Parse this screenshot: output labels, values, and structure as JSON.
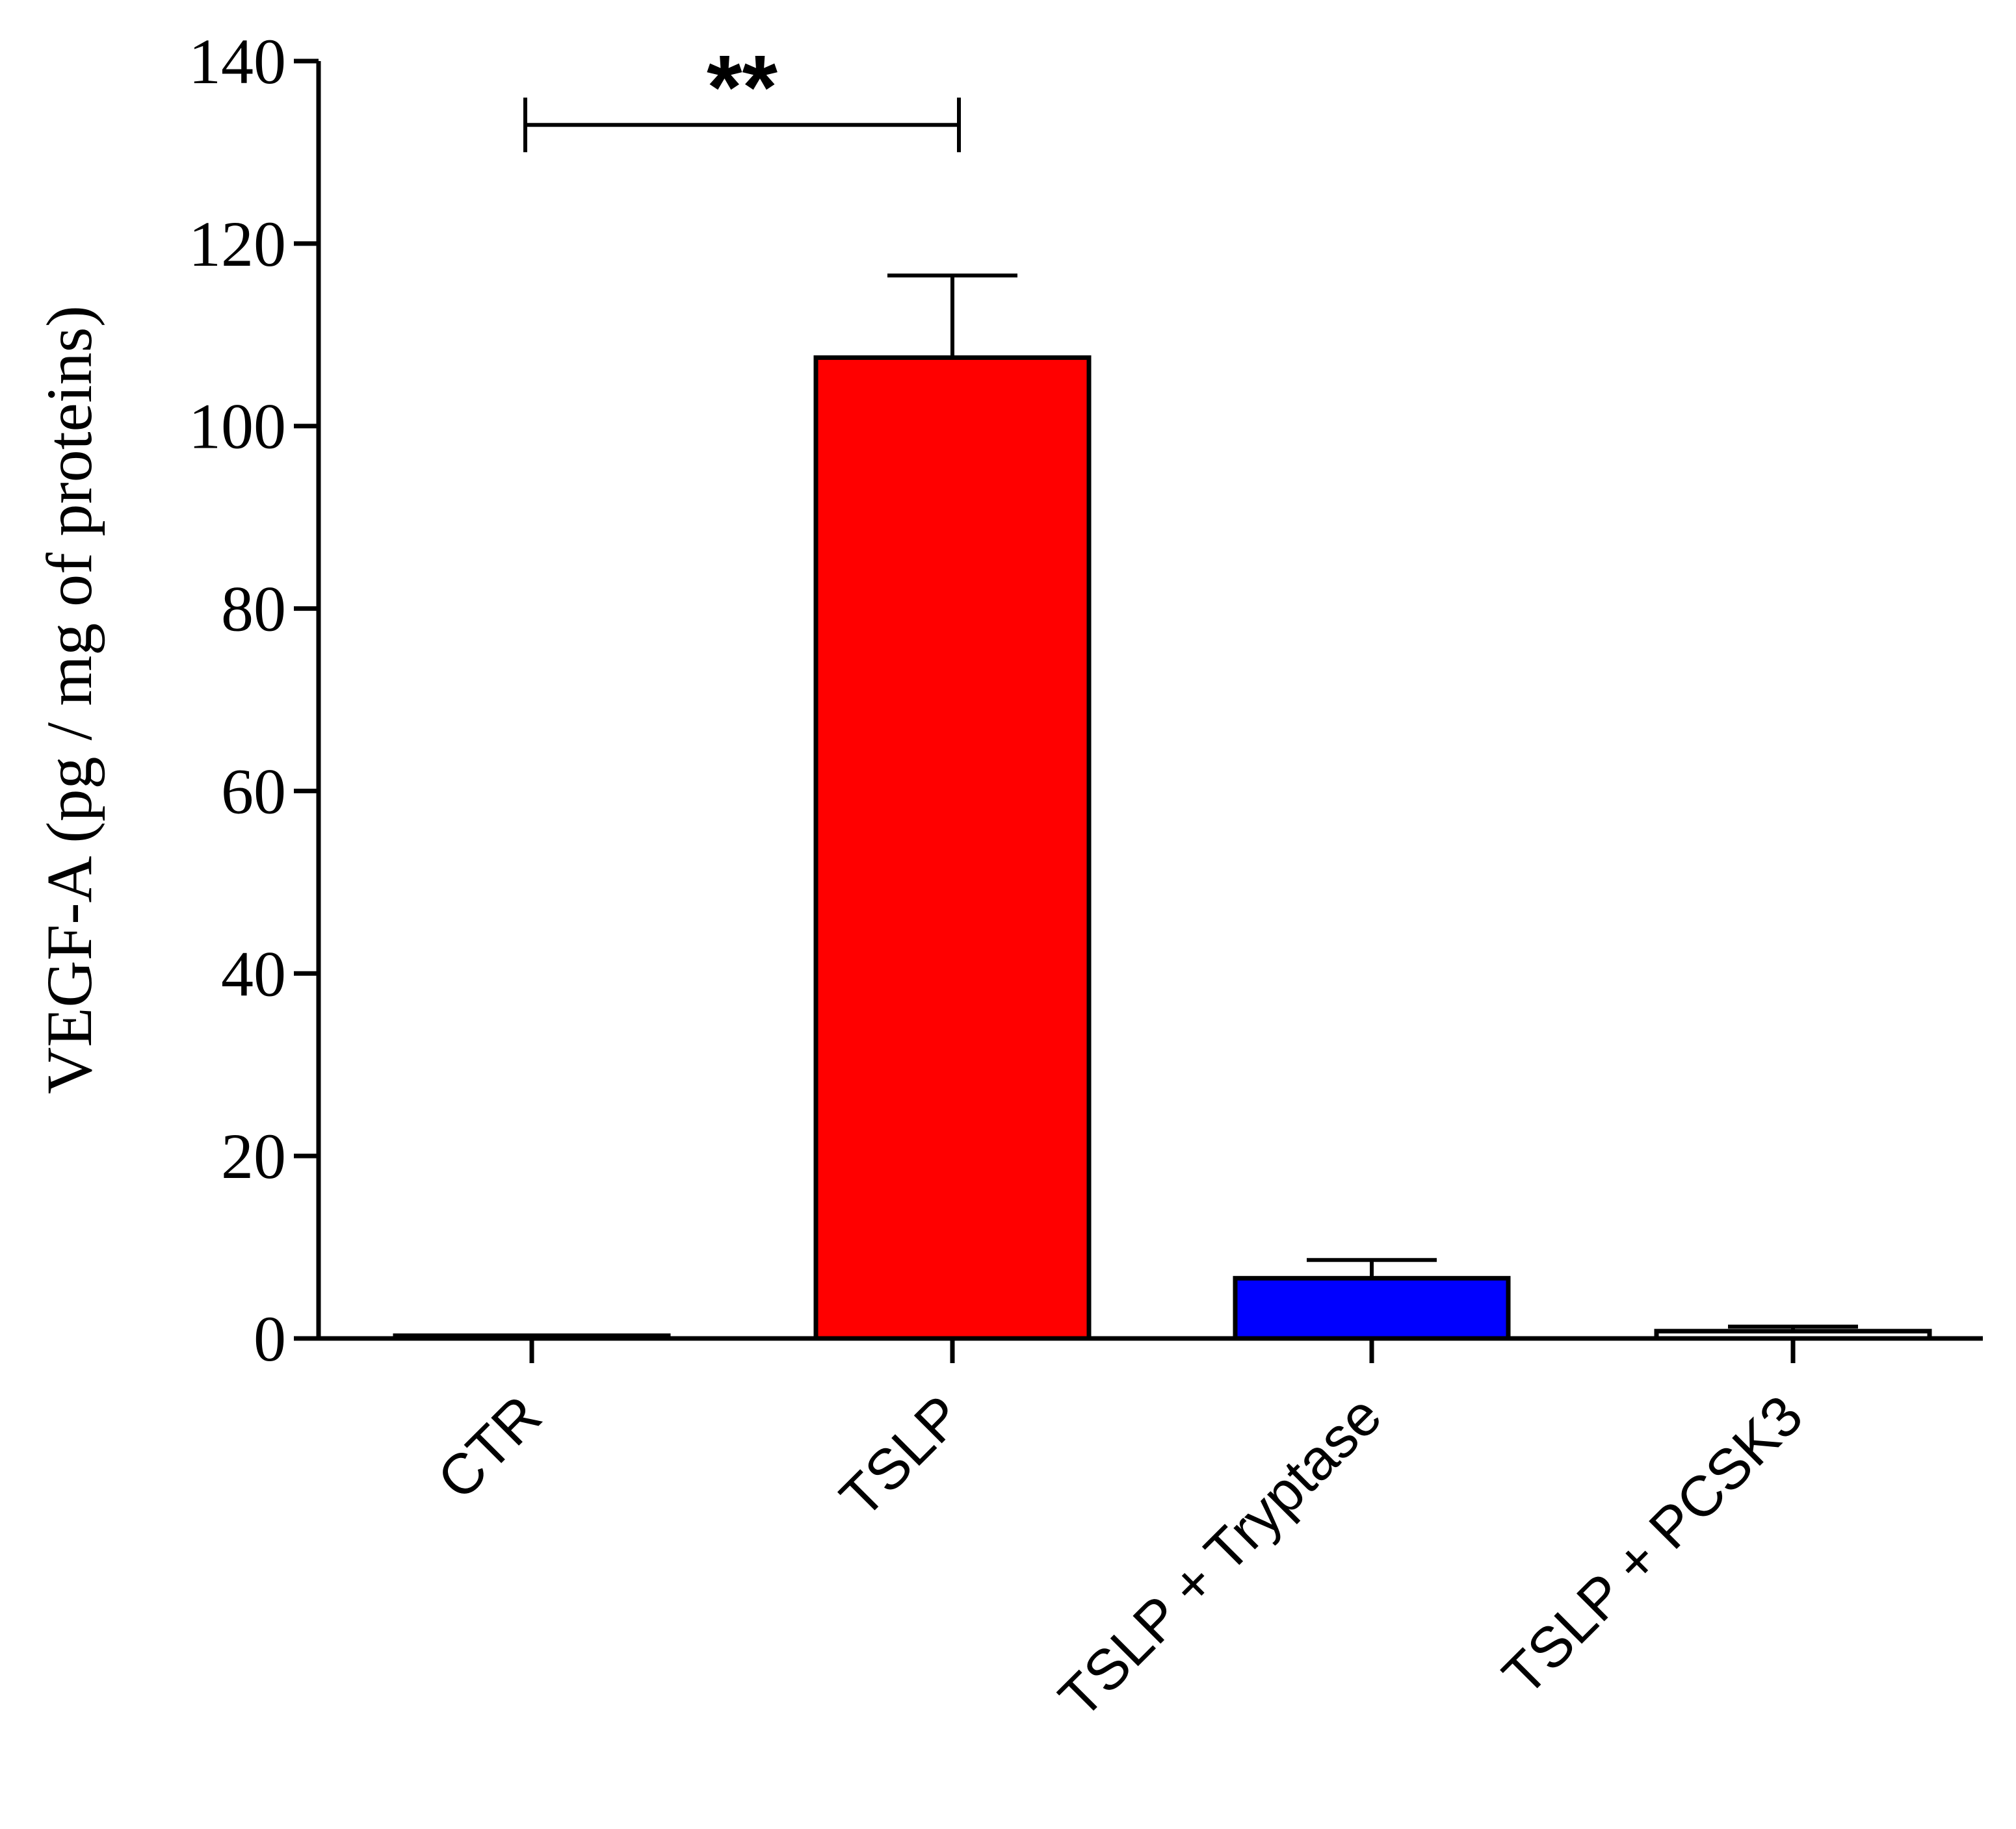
{
  "chart_data": {
    "type": "bar",
    "ylabel": "VEGF-A (pg / mg of proteins)",
    "xlabel": "",
    "ylim": [
      0,
      140
    ],
    "yticks": [
      0,
      20,
      40,
      60,
      80,
      100,
      120,
      140
    ],
    "categories": [
      "CTR",
      "TSLP",
      "TSLP + Tryptase",
      "TSLP + PCSK3"
    ],
    "values": [
      0.3,
      107.5,
      6.6,
      0.8
    ],
    "errors": [
      0.0,
      9.0,
      2.0,
      0.5
    ],
    "colors": [
      "#ffffff",
      "#ff0000",
      "#0000ff",
      "#ffffff"
    ],
    "grid": false,
    "legend": "none",
    "annotations": [
      {
        "text": "**",
        "from": "CTR",
        "to": "TSLP",
        "y": 133
      }
    ]
  }
}
